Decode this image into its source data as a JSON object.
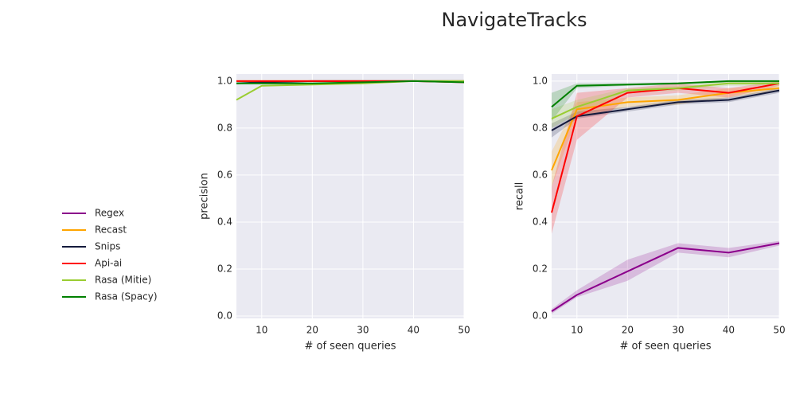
{
  "title": "NavigateTracks",
  "chart_data": [
    {
      "type": "line",
      "xlabel": "# of seen queries",
      "ylabel": "precision",
      "x": [
        5,
        10,
        20,
        30,
        40,
        50
      ],
      "xlim": [
        5,
        50
      ],
      "xticks": [
        10,
        20,
        30,
        40,
        50
      ],
      "ylim": [
        -0.01,
        1.03
      ],
      "yticks": [
        {
          "value": 0,
          "label": "0.0"
        },
        0.2,
        0.4,
        0.6,
        0.8,
        {
          "value": 1,
          "label": "1.0"
        }
      ],
      "grid": true,
      "series": [
        {
          "name": "Regex",
          "color": "#8b008b",
          "values": [
            null,
            null,
            null,
            null,
            null,
            null
          ]
        },
        {
          "name": "Recast",
          "color": "#ffa500",
          "values": [
            1.0,
            1.0,
            1.0,
            1.0,
            1.0,
            1.0
          ]
        },
        {
          "name": "Snips",
          "color": "#141a3c",
          "values": [
            0.99,
            0.995,
            1.0,
            1.0,
            1.0,
            1.0
          ]
        },
        {
          "name": "Api-ai",
          "color": "#ff0000",
          "values": [
            1.0,
            1.0,
            1.0,
            1.0,
            1.0,
            0.995
          ]
        },
        {
          "name": "Rasa (Mitie)",
          "color": "#9acd32",
          "values": [
            0.92,
            0.98,
            0.985,
            0.99,
            1.0,
            1.0
          ]
        },
        {
          "name": "Rasa (Spacy)",
          "color": "#008000",
          "values": [
            0.99,
            0.99,
            0.99,
            0.995,
            1.0,
            0.995
          ]
        }
      ]
    },
    {
      "type": "line",
      "xlabel": "# of seen queries",
      "ylabel": "recall",
      "x": [
        5,
        10,
        20,
        30,
        40,
        50
      ],
      "xlim": [
        5,
        50
      ],
      "xticks": [
        10,
        20,
        30,
        40,
        50
      ],
      "ylim": [
        -0.01,
        1.03
      ],
      "yticks": [
        {
          "value": 0,
          "label": "0.0"
        },
        0.2,
        0.4,
        0.6,
        0.8,
        {
          "value": 1,
          "label": "1.0"
        }
      ],
      "grid": true,
      "series": [
        {
          "color": "#8b008b",
          "values": [
            0.02,
            0.09,
            0.19,
            0.29,
            0.27,
            0.31
          ],
          "lower": [
            0.01,
            0.08,
            0.15,
            0.27,
            0.25,
            0.3
          ],
          "upper": [
            0.03,
            0.11,
            0.24,
            0.31,
            0.29,
            0.32
          ]
        },
        {
          "color": "#ffa500",
          "values": [
            0.62,
            0.88,
            0.91,
            0.92,
            0.95,
            0.97
          ],
          "lower": [
            0.55,
            0.85,
            0.89,
            0.9,
            0.93,
            0.96
          ],
          "upper": [
            0.7,
            0.91,
            0.93,
            0.94,
            0.97,
            0.98
          ]
        },
        {
          "color": "#141a3c",
          "values": [
            0.79,
            0.85,
            0.88,
            0.91,
            0.92,
            0.96
          ],
          "lower": [
            0.76,
            0.84,
            0.87,
            0.9,
            0.91,
            0.95
          ],
          "upper": [
            0.82,
            0.87,
            0.89,
            0.92,
            0.93,
            0.97
          ]
        },
        {
          "color": "#ff0000",
          "values": [
            0.44,
            0.85,
            0.95,
            0.97,
            0.95,
            0.99
          ],
          "lower": [
            0.35,
            0.75,
            0.93,
            0.95,
            0.93,
            0.98
          ],
          "upper": [
            0.55,
            0.95,
            0.97,
            0.99,
            0.97,
            1.0
          ]
        },
        {
          "color": "#9acd32",
          "values": [
            0.84,
            0.89,
            0.96,
            0.97,
            0.99,
            0.99
          ],
          "lower": [
            0.8,
            0.86,
            0.95,
            0.96,
            0.98,
            0.98
          ],
          "upper": [
            0.88,
            0.92,
            0.97,
            0.98,
            1.0,
            1.0
          ]
        },
        {
          "color": "#008000",
          "values": [
            0.89,
            0.98,
            0.985,
            0.99,
            1.0,
            1.0
          ],
          "lower": [
            0.83,
            0.97,
            0.98,
            0.985,
            0.995,
            0.995
          ],
          "upper": [
            0.95,
            0.99,
            0.99,
            0.995,
            1.0,
            1.0
          ]
        }
      ]
    }
  ]
}
